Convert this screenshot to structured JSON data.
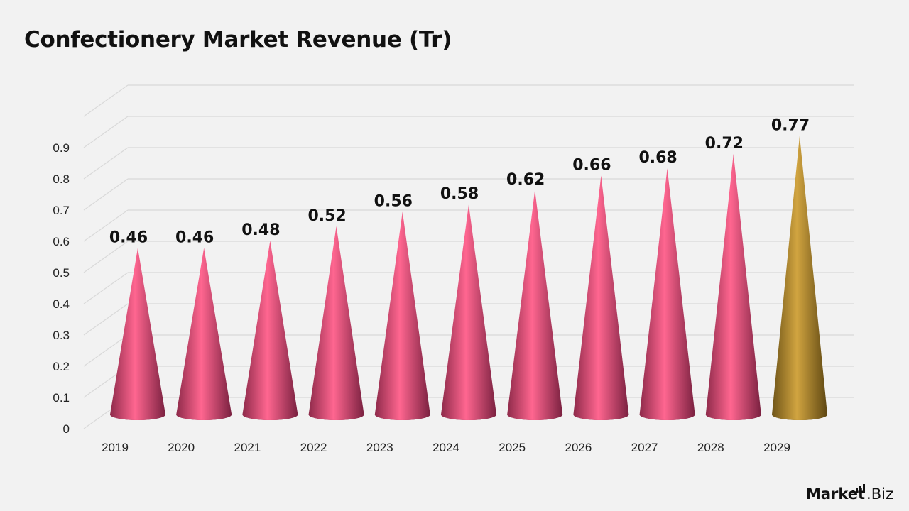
{
  "title": "Confectionery Market Revenue (Tr)",
  "brand": {
    "main": "Market",
    "sub": ".Biz"
  },
  "colors": {
    "background": "#f2f2f2",
    "cone": "#e84a7a",
    "cone_highlight": "#f06a93",
    "cone_forecast": "#b08a30",
    "cone_forecast_highlight": "#d4a945",
    "grid": "#d9d9d9"
  },
  "chart_data": {
    "type": "bar",
    "mark": "cone",
    "title": "Confectionery Market Revenue (Tr)",
    "categories": [
      "2019",
      "2020",
      "2021",
      "2022",
      "2023",
      "2024",
      "2025",
      "2026",
      "2027",
      "2028",
      "2029"
    ],
    "values": [
      0.46,
      0.46,
      0.48,
      0.52,
      0.56,
      0.58,
      0.62,
      0.66,
      0.68,
      0.72,
      0.77
    ],
    "data_labels": [
      "0.46",
      "0.46",
      "0.48",
      "0.52",
      "0.56",
      "0.58",
      "0.62",
      "0.66",
      "0.68",
      "0.72",
      "0.77"
    ],
    "highlight_category": "2029",
    "yticks": [
      "0",
      "0.1",
      "0.2",
      "0.3",
      "0.4",
      "0.5",
      "0.6",
      "0.7",
      "0.8",
      "0.9"
    ],
    "ylim": [
      0,
      1.0
    ],
    "grid": true,
    "legend": "none"
  }
}
